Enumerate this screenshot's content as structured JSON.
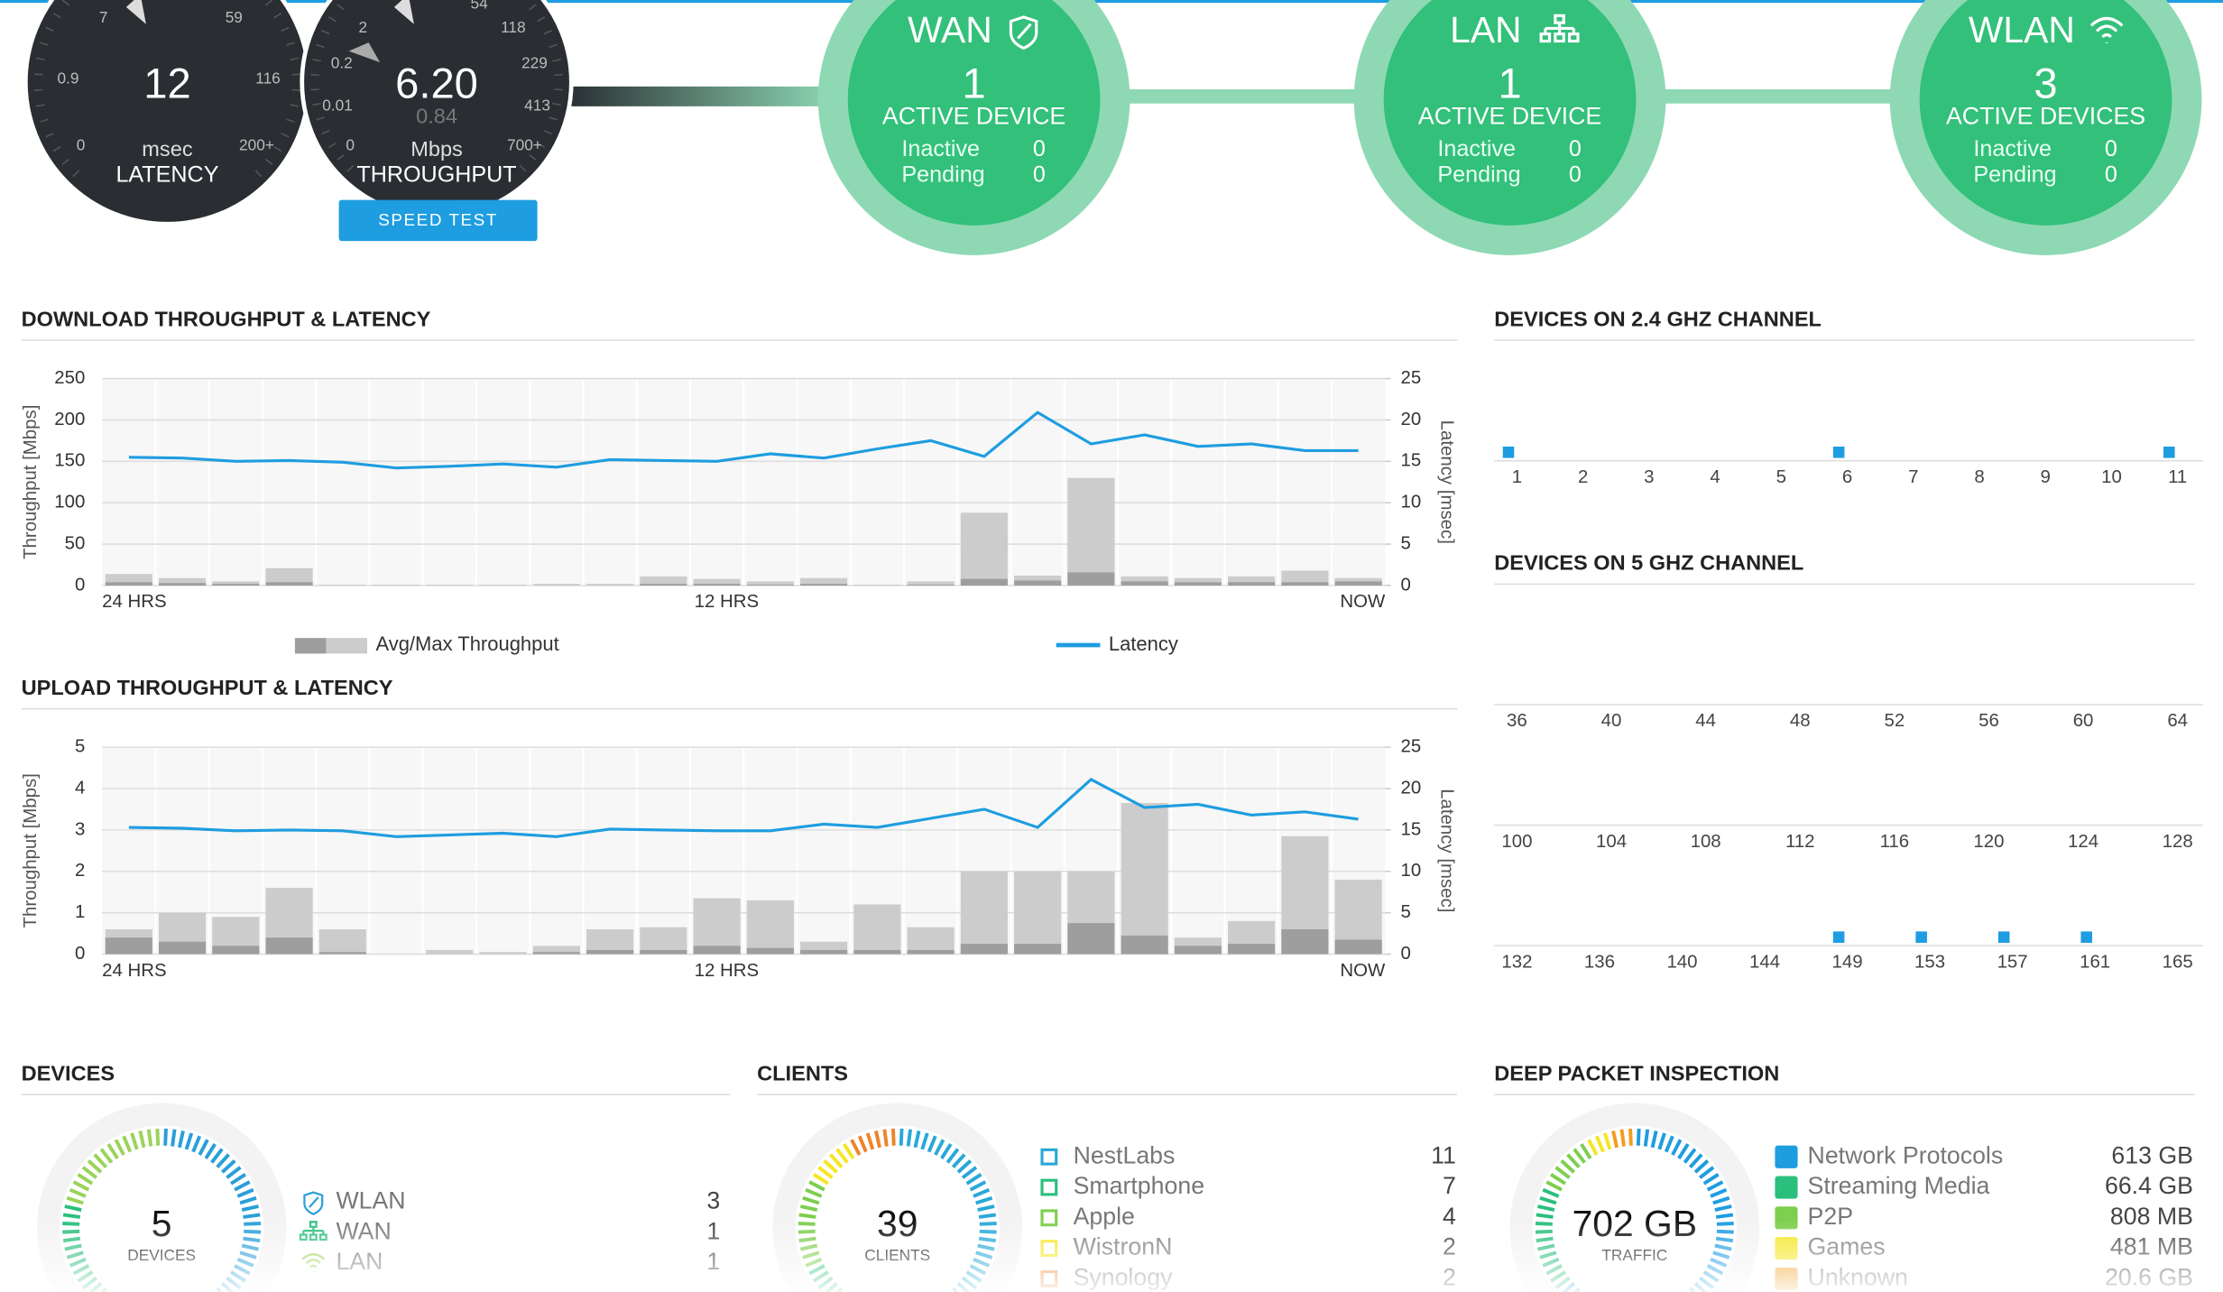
{
  "gauges": [
    {
      "scale_labels": [
        "7",
        "59",
        "0.9",
        "116",
        "0",
        "200+"
      ],
      "value": "12",
      "unit": "msec",
      "label": "LATENCY"
    },
    {
      "scale_labels": [
        "2",
        "54",
        "118",
        "0.2",
        "229",
        "0.01",
        "413",
        "0",
        "700+"
      ],
      "value": "6.20",
      "sub_value": "0.84",
      "unit": "Mbps",
      "label": "THROUGHPUT",
      "button": "SPEED TEST"
    }
  ],
  "status": [
    {
      "name": "WAN",
      "count": "1",
      "caption": "ACTIVE DEVICE",
      "rows": [
        {
          "label": "Inactive",
          "value": "0"
        },
        {
          "label": "Pending",
          "value": "0"
        }
      ]
    },
    {
      "name": "LAN",
      "count": "1",
      "caption": "ACTIVE DEVICE",
      "rows": [
        {
          "label": "Inactive",
          "value": "0"
        },
        {
          "label": "Pending",
          "value": "0"
        }
      ]
    },
    {
      "name": "WLAN",
      "count": "3",
      "caption": "ACTIVE DEVICES",
      "rows": [
        {
          "label": "Inactive",
          "value": "0"
        },
        {
          "label": "Pending",
          "value": "0"
        }
      ]
    }
  ],
  "chart_data": [
    {
      "type": "bar",
      "title": "DOWNLOAD THROUGHPUT & LATENCY",
      "ylabel": "Throughput [Mbps]",
      "y2label": "Latency [msec]",
      "x_labels": [
        "24 HRS",
        "12 HRS",
        "NOW"
      ],
      "ylim": [
        0,
        250
      ],
      "yticks": [
        0,
        50,
        100,
        150,
        200,
        250
      ],
      "y2lim": [
        0,
        25
      ],
      "y2ticks": [
        0,
        5,
        10,
        15,
        20,
        25
      ],
      "grid": true,
      "series": [
        {
          "name": "Avg/Max Throughput",
          "color": "#cccccc",
          "avg_color": "#9e9e9e",
          "values": [
            14,
            9,
            5,
            21,
            1,
            1,
            1,
            1,
            2,
            2,
            11,
            8,
            5,
            9,
            1,
            5,
            88,
            12,
            130,
            11,
            9,
            11,
            18,
            9
          ],
          "avg_values": [
            4,
            3,
            2,
            4,
            0,
            0,
            0,
            0,
            0,
            0,
            2,
            2,
            1,
            2,
            0,
            1,
            8,
            6,
            16,
            5,
            4,
            4,
            4,
            5
          ]
        },
        {
          "name": "Latency",
          "color": "#1e9de0",
          "axis": "y2",
          "values": [
            15.5,
            15.4,
            15,
            15.1,
            14.9,
            14.2,
            14.4,
            14.7,
            14.3,
            15.2,
            15.1,
            15,
            15.9,
            15.4,
            16.5,
            17.5,
            15.6,
            20.9,
            17.1,
            18.2,
            16.8,
            17.1,
            16.3,
            16.3
          ]
        }
      ]
    },
    {
      "type": "bar",
      "title": "UPLOAD THROUGHPUT & LATENCY",
      "ylabel": "Throughput [Mbps]",
      "y2label": "Latency [msec]",
      "x_labels": [
        "24 HRS",
        "12 HRS",
        "NOW"
      ],
      "ylim": [
        0,
        5
      ],
      "yticks": [
        0,
        1,
        2,
        3,
        4,
        5
      ],
      "y2lim": [
        0,
        25
      ],
      "y2ticks": [
        0,
        5,
        10,
        15,
        20,
        25
      ],
      "grid": true,
      "series": [
        {
          "color": "#cccccc",
          "avg_color": "#9e9e9e",
          "values": [
            0.6,
            1.0,
            0.9,
            1.6,
            0.6,
            0,
            0.1,
            0.05,
            0.2,
            0.6,
            0.65,
            1.35,
            1.3,
            0.3,
            1.2,
            0.65,
            2.0,
            2.0,
            2.0,
            3.65,
            0.4,
            0.8,
            2.85,
            1.8
          ],
          "avg_values": [
            0.4,
            0.3,
            0.2,
            0.4,
            0.05,
            0,
            0,
            0,
            0.05,
            0.1,
            0.1,
            0.2,
            0.15,
            0.1,
            0.1,
            0.1,
            0.25,
            0.25,
            0.75,
            0.45,
            0.2,
            0.25,
            0.6,
            0.35
          ]
        },
        {
          "color": "#1e9de0",
          "axis": "y2",
          "values": [
            15.3,
            15.2,
            14.9,
            15,
            14.9,
            14.2,
            14.4,
            14.6,
            14.2,
            15.1,
            15,
            14.9,
            14.9,
            15.7,
            15.3,
            16.4,
            17.5,
            15.3,
            21.1,
            17.7,
            18.1,
            16.8,
            17.2,
            16.3
          ]
        }
      ]
    }
  ],
  "channels_24": {
    "title": "DEVICES ON 2.4 GHZ CHANNEL",
    "rows": [
      {
        "channels": [
          1,
          2,
          3,
          4,
          5,
          6,
          7,
          8,
          9,
          10,
          11
        ],
        "devices": [
          1,
          0,
          0,
          0,
          0,
          1,
          0,
          0,
          0,
          0,
          1
        ]
      }
    ]
  },
  "channels_5": {
    "title": "DEVICES ON 5 GHZ CHANNEL",
    "rows": [
      {
        "channels": [
          36,
          40,
          44,
          48,
          52,
          56,
          60,
          64
        ],
        "devices": [
          0,
          0,
          0,
          0,
          0,
          0,
          0,
          0
        ]
      },
      {
        "channels": [
          100,
          104,
          108,
          112,
          116,
          120,
          124,
          128
        ],
        "devices": [
          0,
          0,
          0,
          0,
          0,
          0,
          0,
          0
        ]
      },
      {
        "channels": [
          132,
          136,
          140,
          144,
          149,
          153,
          157,
          161,
          165
        ],
        "devices": [
          0,
          0,
          0,
          0,
          1,
          1,
          1,
          1,
          0
        ]
      }
    ]
  },
  "devices": {
    "title": "DEVICES",
    "total": 5,
    "caption": "DEVICES",
    "items": [
      {
        "name": "WLAN",
        "value": 3,
        "color": "#2a9fd8"
      },
      {
        "name": "WAN",
        "value": 1,
        "color": "#2bbf7d"
      },
      {
        "name": "LAN",
        "value": 1,
        "color": "#9ad35a"
      }
    ]
  },
  "clients": {
    "title": "CLIENTS",
    "total": 39,
    "caption": "CLIENTS",
    "items": [
      {
        "name": "NestLabs",
        "value": 11,
        "color": "#2aa8d8"
      },
      {
        "name": "Smartphone",
        "value": 7,
        "color": "#2bbf7d"
      },
      {
        "name": "Apple",
        "value": 4,
        "color": "#7dcf4f"
      },
      {
        "name": "WistronN",
        "value": 2,
        "color": "#f5e623"
      },
      {
        "name": "Synology",
        "value": 2,
        "color": "#f0832a"
      }
    ]
  },
  "dpi": {
    "title": "DEEP PACKET INSPECTION",
    "total": "702 GB",
    "caption": "TRAFFIC",
    "items": [
      {
        "name": "Network Protocols",
        "value": "613 GB",
        "color": "#1e9de0"
      },
      {
        "name": "Streaming Media",
        "value": "66.4 GB",
        "color": "#2bbf7d"
      },
      {
        "name": "P2P",
        "value": "808 MB",
        "color": "#7dcf4f"
      },
      {
        "name": "Games",
        "value": "481 MB",
        "color": "#f5e623"
      },
      {
        "name": "Unknown",
        "value": "20.6 GB",
        "color": "#f39c1f"
      }
    ]
  }
}
